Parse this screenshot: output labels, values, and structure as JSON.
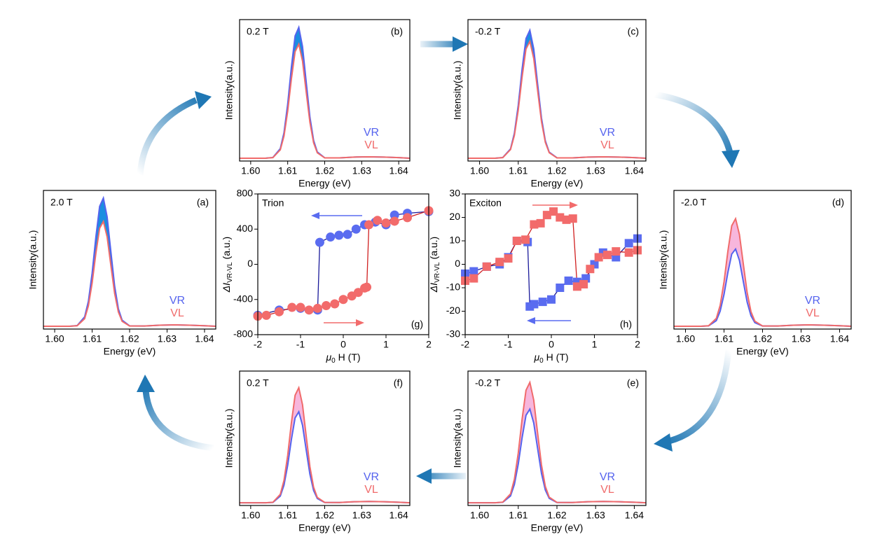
{
  "chart_data": [
    {
      "type": "line",
      "annotation": "2.0 T",
      "panel_label": "(a)",
      "x_label": "Energy (eV)",
      "y_label": "Intensity(a.u.)",
      "xlim": [
        1.597,
        1.643
      ],
      "ylim": [
        0,
        1
      ],
      "xticks": [
        {
          "value": 1.6,
          "label": "1.60"
        },
        1.61,
        1.62,
        1.63,
        1.64
      ],
      "fill_color": "#1b8ee0",
      "x": [
        1.597,
        1.6,
        1.604,
        1.606,
        1.608,
        1.609,
        1.61,
        1.611,
        1.612,
        1.613,
        1.614,
        1.615,
        1.616,
        1.617,
        1.618,
        1.62,
        1.624,
        1.628,
        1.632,
        1.636,
        1.64,
        1.643
      ],
      "series": [
        {
          "name": "VR",
          "color": "#5563ee",
          "values": [
            0.02,
            0.02,
            0.02,
            0.025,
            0.088,
            0.2,
            0.402,
            0.664,
            0.885,
            0.945,
            0.81,
            0.558,
            0.311,
            0.146,
            0.064,
            0.023,
            0.022,
            0.028,
            0.03,
            0.028,
            0.024,
            0.02
          ]
        },
        {
          "name": "VL",
          "color": "#f06b6b",
          "values": [
            0.02,
            0.02,
            0.02,
            0.024,
            0.075,
            0.167,
            0.332,
            0.547,
            0.727,
            0.776,
            0.665,
            0.459,
            0.258,
            0.123,
            0.056,
            0.022,
            0.022,
            0.028,
            0.03,
            0.028,
            0.024,
            0.02
          ]
        }
      ]
    },
    {
      "type": "line",
      "annotation": "0.2 T",
      "panel_label": "(b)",
      "x_label": "Energy (eV)",
      "y_label": "Intensity(a.u.)",
      "xlim": [
        1.597,
        1.643
      ],
      "ylim": [
        0,
        1
      ],
      "xticks": [
        {
          "value": 1.6,
          "label": "1.60"
        },
        1.61,
        1.62,
        1.63,
        1.64
      ],
      "fill_color": "#1b8ee0",
      "x": [
        1.597,
        1.6,
        1.604,
        1.606,
        1.608,
        1.609,
        1.61,
        1.611,
        1.612,
        1.613,
        1.614,
        1.615,
        1.616,
        1.617,
        1.618,
        1.62,
        1.624,
        1.628,
        1.632,
        1.636,
        1.64,
        1.643
      ],
      "series": [
        {
          "name": "VR",
          "color": "#5563ee",
          "values": [
            0.02,
            0.02,
            0.02,
            0.025,
            0.088,
            0.2,
            0.402,
            0.664,
            0.885,
            0.945,
            0.81,
            0.558,
            0.311,
            0.146,
            0.064,
            0.023,
            0.022,
            0.028,
            0.03,
            0.028,
            0.024,
            0.02
          ]
        },
        {
          "name": "VL",
          "color": "#f06b6b",
          "values": [
            0.02,
            0.02,
            0.02,
            0.024,
            0.079,
            0.177,
            0.353,
            0.581,
            0.773,
            0.826,
            0.708,
            0.488,
            0.274,
            0.129,
            0.058,
            0.022,
            0.022,
            0.028,
            0.03,
            0.028,
            0.024,
            0.02
          ]
        }
      ]
    },
    {
      "type": "line",
      "annotation": "-0.2 T",
      "panel_label": "(c)",
      "x_label": "Energy (eV)",
      "y_label": "Intensity(a.u.)",
      "xlim": [
        1.597,
        1.643
      ],
      "ylim": [
        0,
        1
      ],
      "xticks": [
        {
          "value": 1.6,
          "label": "1.60"
        },
        1.61,
        1.62,
        1.63,
        1.64
      ],
      "fill_color": "#1b8ee0",
      "x": [
        1.597,
        1.6,
        1.604,
        1.606,
        1.608,
        1.609,
        1.61,
        1.611,
        1.612,
        1.613,
        1.614,
        1.615,
        1.616,
        1.617,
        1.618,
        1.62,
        1.624,
        1.628,
        1.632,
        1.636,
        1.64,
        1.643
      ],
      "series": [
        {
          "name": "VR",
          "color": "#5563ee",
          "values": [
            0.02,
            0.02,
            0.02,
            0.025,
            0.086,
            0.197,
            0.394,
            0.651,
            0.866,
            0.925,
            0.793,
            0.546,
            0.305,
            0.143,
            0.063,
            0.023,
            0.022,
            0.028,
            0.03,
            0.028,
            0.024,
            0.02
          ]
        },
        {
          "name": "VL",
          "color": "#f06b6b",
          "values": [
            0.02,
            0.02,
            0.02,
            0.024,
            0.081,
            0.181,
            0.361,
            0.595,
            0.792,
            0.846,
            0.725,
            0.5,
            0.28,
            0.132,
            0.059,
            0.022,
            0.022,
            0.028,
            0.03,
            0.028,
            0.024,
            0.02
          ]
        }
      ]
    },
    {
      "type": "line",
      "annotation": "-2.0 T",
      "panel_label": "(d)",
      "x_label": "Energy (eV)",
      "y_label": "Intensity(a.u.)",
      "xlim": [
        1.597,
        1.643
      ],
      "ylim": [
        0,
        1
      ],
      "xticks": [
        {
          "value": 1.6,
          "label": "1.60"
        },
        1.61,
        1.62,
        1.63,
        1.64
      ],
      "fill_color": "#f7b6dc",
      "x": [
        1.597,
        1.6,
        1.604,
        1.606,
        1.608,
        1.609,
        1.61,
        1.611,
        1.612,
        1.613,
        1.614,
        1.615,
        1.616,
        1.617,
        1.618,
        1.62,
        1.624,
        1.628,
        1.632,
        1.636,
        1.64,
        1.643
      ],
      "series": [
        {
          "name": "VR",
          "color": "#5563ee",
          "values": [
            0.02,
            0.02,
            0.02,
            0.023,
            0.061,
            0.129,
            0.25,
            0.408,
            0.541,
            0.577,
            0.495,
            0.344,
            0.195,
            0.096,
            0.046,
            0.022,
            0.022,
            0.028,
            0.03,
            0.028,
            0.024,
            0.02
          ]
        },
        {
          "name": "VL",
          "color": "#f06b6b",
          "values": [
            0.02,
            0.02,
            0.02,
            0.024,
            0.077,
            0.171,
            0.341,
            0.561,
            0.745,
            0.796,
            0.682,
            0.471,
            0.264,
            0.125,
            0.057,
            0.022,
            0.022,
            0.028,
            0.03,
            0.028,
            0.024,
            0.02
          ]
        }
      ]
    },
    {
      "type": "line",
      "annotation": "-0.2 T",
      "panel_label": "(e)",
      "x_label": "Energy (eV)",
      "y_label": "Intensity(a.u.)",
      "xlim": [
        1.597,
        1.643
      ],
      "ylim": [
        0,
        1
      ],
      "xticks": [
        {
          "value": 1.6,
          "label": "1.60"
        },
        1.61,
        1.62,
        1.63,
        1.64
      ],
      "fill_color": "#f7b6dc",
      "x": [
        1.597,
        1.6,
        1.604,
        1.606,
        1.608,
        1.609,
        1.61,
        1.611,
        1.612,
        1.613,
        1.614,
        1.615,
        1.616,
        1.617,
        1.618,
        1.62,
        1.624,
        1.628,
        1.632,
        1.636,
        1.64,
        1.643
      ],
      "series": [
        {
          "name": "VR",
          "color": "#5563ee",
          "values": [
            0.02,
            0.02,
            0.02,
            0.024,
            0.071,
            0.156,
            0.308,
            0.505,
            0.671,
            0.717,
            0.614,
            0.425,
            0.239,
            0.115,
            0.053,
            0.022,
            0.022,
            0.028,
            0.03,
            0.028,
            0.024,
            0.02
          ]
        },
        {
          "name": "VL",
          "color": "#f06b6b",
          "values": [
            0.02,
            0.02,
            0.02,
            0.025,
            0.086,
            0.195,
            0.39,
            0.644,
            0.857,
            0.916,
            0.784,
            0.54,
            0.302,
            0.142,
            0.062,
            0.023,
            0.022,
            0.028,
            0.03,
            0.028,
            0.024,
            0.02
          ]
        }
      ]
    },
    {
      "type": "line",
      "annotation": "0.2 T",
      "panel_label": "(f)",
      "x_label": "Energy (eV)",
      "y_label": "Intensity(a.u.)",
      "xlim": [
        1.597,
        1.643
      ],
      "ylim": [
        0,
        1
      ],
      "xticks": [
        {
          "value": 1.6,
          "label": "1.60"
        },
        1.61,
        1.62,
        1.63,
        1.64
      ],
      "fill_color": "#f7b6dc",
      "x": [
        1.597,
        1.6,
        1.604,
        1.606,
        1.608,
        1.609,
        1.61,
        1.611,
        1.612,
        1.613,
        1.614,
        1.615,
        1.616,
        1.617,
        1.618,
        1.62,
        1.624,
        1.628,
        1.632,
        1.636,
        1.64,
        1.643
      ],
      "series": [
        {
          "name": "VR",
          "color": "#5563ee",
          "values": [
            0.02,
            0.02,
            0.02,
            0.023,
            0.07,
            0.152,
            0.3,
            0.491,
            0.652,
            0.697,
            0.597,
            0.413,
            0.233,
            0.112,
            0.052,
            0.022,
            0.022,
            0.028,
            0.03,
            0.028,
            0.024,
            0.02
          ]
        },
        {
          "name": "VL",
          "color": "#f06b6b",
          "values": [
            0.02,
            0.02,
            0.02,
            0.024,
            0.083,
            0.187,
            0.373,
            0.616,
            0.82,
            0.876,
            0.75,
            0.517,
            0.289,
            0.136,
            0.06,
            0.023,
            0.022,
            0.028,
            0.03,
            0.028,
            0.024,
            0.02
          ]
        }
      ]
    },
    {
      "type": "scatter",
      "annotation": "Trion",
      "panel_label": "(g)",
      "marker": "circle",
      "x_label": {
        "pre": "μ",
        "sub": "0",
        "post": "H (T)"
      },
      "y_label": {
        "pre": "ΔI",
        "sub": "VR-VL",
        "post": "(a.u.)"
      },
      "xlim": [
        -2,
        2
      ],
      "ylim": [
        -800,
        800
      ],
      "xticks": [
        -2,
        -1,
        0,
        1,
        2
      ],
      "yticks": [
        -800,
        -400,
        0,
        400,
        800
      ],
      "series": [
        {
          "color": "#5a6cf0",
          "line_color": "#1a1a9a",
          "x": [
            2,
            1.5,
            1.2,
            1,
            0.75,
            0.5,
            0.3,
            0.1,
            -0.1,
            -0.3,
            -0.55,
            -0.6,
            -1,
            -1.5,
            -2
          ],
          "values": [
            600,
            580,
            560,
            450,
            480,
            450,
            400,
            340,
            330,
            310,
            250,
            -520,
            -500,
            -520,
            -580
          ]
        },
        {
          "color": "#f26b6b",
          "line_color": "#d02020",
          "x": [
            -2,
            -1.8,
            -1.5,
            -1.2,
            -1,
            -0.8,
            -0.6,
            -0.4,
            -0.2,
            0,
            0.2,
            0.35,
            0.5,
            0.55,
            0.6,
            0.8,
            1,
            1.2,
            1.5,
            2
          ],
          "values": [
            -590,
            -580,
            -540,
            -490,
            -490,
            -520,
            -500,
            -470,
            -450,
            -400,
            -360,
            -320,
            -270,
            -260,
            450,
            500,
            470,
            490,
            530,
            610
          ]
        }
      ]
    },
    {
      "type": "scatter",
      "annotation": "Exciton",
      "panel_label": "(h)",
      "marker": "square",
      "x_label": {
        "pre": "μ",
        "sub": "0",
        "post": "H (T)"
      },
      "y_label": {
        "pre": "ΔI",
        "sub": "VR-VL",
        "post": "(a.u.)"
      },
      "xlim": [
        -2,
        2
      ],
      "ylim": [
        -30,
        30
      ],
      "xticks": [
        -2,
        -1,
        0,
        1,
        2
      ],
      "yticks": [
        -30,
        -20,
        -10,
        0,
        10,
        20,
        30
      ],
      "series": [
        {
          "color": "#5a6cf0",
          "line_color": "#1a1a9a",
          "x": [
            2,
            1.8,
            1.5,
            1.2,
            1,
            0.8,
            0.6,
            0.4,
            0.2,
            0,
            -0.2,
            -0.4,
            -0.5,
            -0.55,
            -0.8,
            -1,
            -1.2,
            -1.5,
            -1.8,
            -2
          ],
          "values": [
            11,
            9,
            3,
            5,
            0,
            -6,
            -7.5,
            -7,
            -10,
            -15,
            -16,
            -17,
            -18,
            9.5,
            10,
            3,
            0,
            -1,
            -3,
            -4
          ]
        },
        {
          "color": "#f26b6b",
          "line_color": "#d02020",
          "x": [
            -2,
            -1.8,
            -1.5,
            -1.2,
            -1,
            -0.8,
            -0.6,
            -0.4,
            -0.25,
            -0.1,
            0.05,
            0.2,
            0.35,
            0.5,
            0.6,
            0.75,
            0.9,
            1.1,
            1.3,
            1.5,
            1.8,
            2
          ],
          "values": [
            -7,
            -6,
            -1,
            1,
            2.5,
            10,
            10.5,
            17,
            17.5,
            21,
            22.5,
            20,
            19,
            19.5,
            -9.5,
            -8.5,
            -2,
            3,
            4,
            5.5,
            5,
            6
          ]
        }
      ]
    }
  ]
}
